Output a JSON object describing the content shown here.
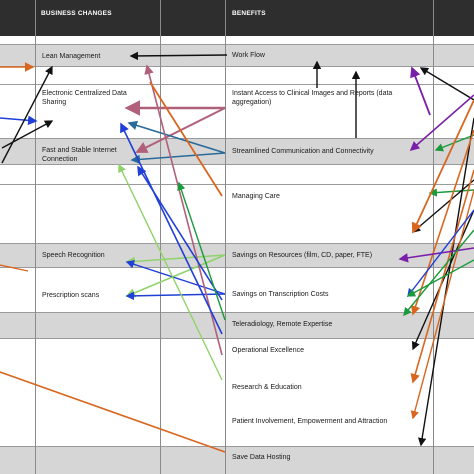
{
  "headers": {
    "business_changes": "BUSINESS CHANGES",
    "benefits": "BENEFITS"
  },
  "business_changes": [
    {
      "label": "Lean Management"
    },
    {
      "label": "Electronic Centralized Data\nSharing"
    },
    {
      "label": "Fast and Stable Internet\nConnection"
    },
    {
      "label": "Speech Recognition"
    },
    {
      "label": "Prescription scans"
    }
  ],
  "benefits": [
    {
      "label": "Work Flow"
    },
    {
      "label": "Instant Access to Clinical Images and Reports (data\naggregation)"
    },
    {
      "label": "Streamlined Communication and Connectivity"
    },
    {
      "label": "Managing Care"
    },
    {
      "label": "Savings on Resources (film, CD, paper, FTE)"
    },
    {
      "label": "Savings on Transcription Costs"
    },
    {
      "label": "Teleradiology, Remote Expertise"
    },
    {
      "label": "Operational Excellence"
    },
    {
      "label": "Research & Education"
    },
    {
      "label": "Patient Involvement, Empowerment and Attraction"
    },
    {
      "label": "Save Data Hosting"
    }
  ],
  "arrow_colors": {
    "black": "#111111",
    "blue": "#1f3fd6",
    "orange": "#d9661f",
    "purple": "#7a1fa8",
    "green": "#1a9a3a",
    "light_green": "#8fd36b",
    "mauve": "#b0607a",
    "teal_blue": "#2a6a9a"
  }
}
